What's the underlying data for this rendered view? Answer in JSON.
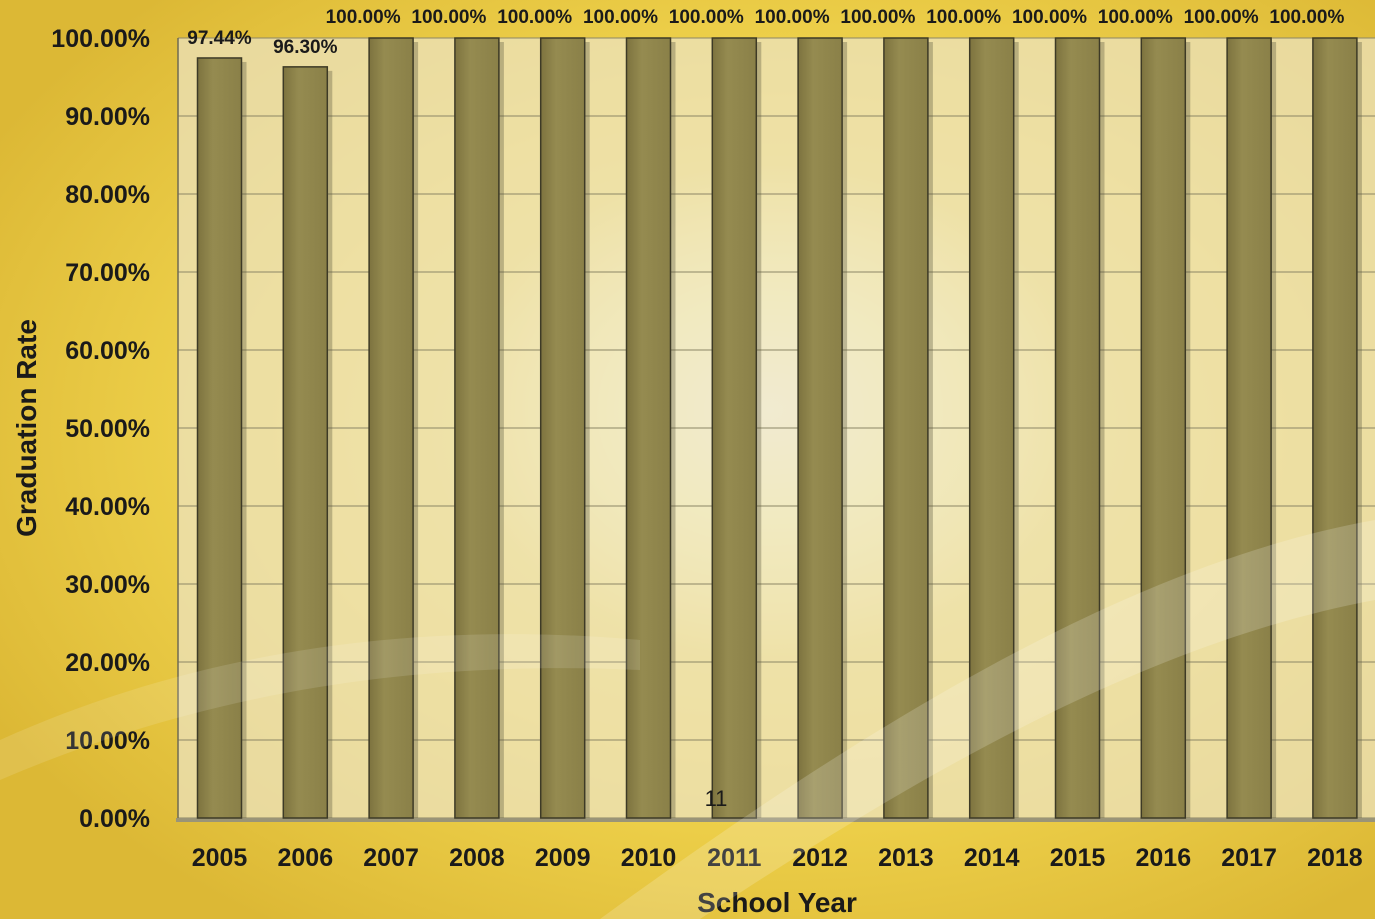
{
  "chart_data": {
    "type": "bar",
    "xlabel": "School Year",
    "ylabel": "Graduation Rate",
    "ylim": [
      0,
      100
    ],
    "ytick_step": 10,
    "y_tick_labels": [
      "0.00%",
      "10.00%",
      "20.00%",
      "30.00%",
      "40.00%",
      "50.00%",
      "60.00%",
      "70.00%",
      "80.00%",
      "90.00%",
      "100.00%"
    ],
    "categories": [
      "2005",
      "2006",
      "2007",
      "2008",
      "2009",
      "2010",
      "2011",
      "2012",
      "2013",
      "2014",
      "2015",
      "2016",
      "2017",
      "2018"
    ],
    "values": [
      97.44,
      96.3,
      100,
      100,
      100,
      100,
      100,
      100,
      100,
      100,
      100,
      100,
      100,
      100
    ],
    "data_labels": [
      "97.44%",
      "96.30%",
      "100.00%",
      "100.00%",
      "100.00%",
      "100.00%",
      "100.00%",
      "100.00%",
      "100.00%",
      "100.00%",
      "100.00%",
      "100.00%",
      "100.00%",
      "100.00%"
    ],
    "grid": true,
    "bar_color": "#958b50",
    "plot_background": "#ebe3c4"
  },
  "slide": {
    "page_number": "11"
  }
}
